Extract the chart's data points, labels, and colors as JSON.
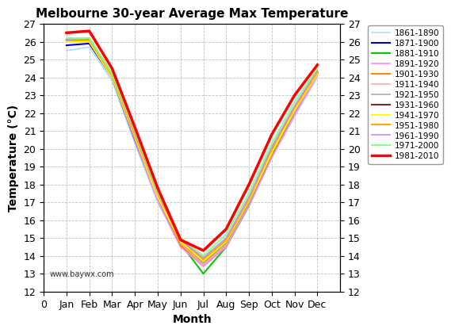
{
  "title": "Melbourne 30-year Average Max Temperature",
  "xlabel": "Month",
  "ylabel": "Temperature (°C)",
  "watermark": "www.baywx.com",
  "ylim": [
    12,
    27
  ],
  "yticks": [
    12,
    13,
    14,
    15,
    16,
    17,
    18,
    19,
    20,
    21,
    22,
    23,
    24,
    25,
    26,
    27
  ],
  "xtick_labels": [
    "0",
    "Jan",
    "Feb",
    "Mar",
    "Apr",
    "May",
    "Jun",
    "Jul",
    "Aug",
    "Sep",
    "Oct",
    "Nov",
    "Dec"
  ],
  "xtick_positions": [
    0,
    1,
    2,
    3,
    4,
    5,
    6,
    7,
    8,
    9,
    10,
    11,
    12
  ],
  "xlim": [
    0,
    13
  ],
  "series": [
    {
      "label": "1861-1890",
      "color": "#aaddff",
      "linewidth": 1.2,
      "zorder": 1,
      "data": [
        25.5,
        25.7,
        23.8,
        20.3,
        17.0,
        14.5,
        13.7,
        14.5,
        16.8,
        19.5,
        21.8,
        24.0
      ]
    },
    {
      "label": "1871-1900",
      "color": "#0000cc",
      "linewidth": 1.5,
      "zorder": 2,
      "data": [
        25.8,
        25.9,
        24.0,
        20.5,
        17.2,
        14.6,
        13.8,
        14.8,
        17.0,
        19.7,
        22.0,
        24.2
      ]
    },
    {
      "label": "1881-1910",
      "color": "#00cc00",
      "linewidth": 1.5,
      "zorder": 3,
      "data": [
        26.1,
        26.2,
        24.2,
        20.6,
        17.3,
        14.7,
        13.0,
        14.5,
        16.8,
        19.6,
        22.0,
        24.3
      ]
    },
    {
      "label": "1891-1920",
      "color": "#ff88ff",
      "linewidth": 1.2,
      "zorder": 4,
      "data": [
        26.0,
        26.0,
        24.0,
        20.5,
        17.1,
        14.5,
        13.4,
        14.5,
        16.8,
        19.5,
        21.9,
        24.1
      ]
    },
    {
      "label": "1901-1930",
      "color": "#ff8800",
      "linewidth": 1.5,
      "zorder": 5,
      "data": [
        26.1,
        26.1,
        24.1,
        20.6,
        17.3,
        14.6,
        13.5,
        14.6,
        17.0,
        19.7,
        22.1,
        24.2
      ]
    },
    {
      "label": "1911-1940",
      "color": "#ffaaaa",
      "linewidth": 1.2,
      "zorder": 6,
      "data": [
        26.0,
        26.0,
        24.0,
        20.6,
        17.3,
        14.7,
        13.5,
        14.6,
        17.0,
        19.8,
        22.1,
        24.2
      ]
    },
    {
      "label": "1921-1950",
      "color": "#aaaaaa",
      "linewidth": 1.2,
      "zorder": 7,
      "data": [
        26.1,
        26.1,
        24.1,
        20.7,
        17.4,
        14.8,
        13.6,
        14.7,
        17.0,
        19.8,
        22.2,
        24.3
      ]
    },
    {
      "label": "1931-1960",
      "color": "#882222",
      "linewidth": 1.5,
      "zorder": 8,
      "data": [
        26.1,
        26.1,
        24.1,
        20.7,
        17.4,
        14.8,
        13.7,
        14.8,
        17.1,
        19.9,
        22.3,
        24.3
      ]
    },
    {
      "label": "1941-1970",
      "color": "#ffff00",
      "linewidth": 1.5,
      "zorder": 9,
      "data": [
        26.0,
        26.0,
        24.0,
        20.7,
        17.3,
        14.8,
        13.7,
        14.8,
        17.1,
        19.8,
        22.2,
        24.2
      ]
    },
    {
      "label": "1951-1980",
      "color": "#ffaa00",
      "linewidth": 1.5,
      "zorder": 10,
      "data": [
        26.1,
        26.1,
        24.1,
        20.8,
        17.5,
        14.9,
        13.8,
        14.9,
        17.2,
        20.0,
        22.3,
        24.3
      ]
    },
    {
      "label": "1961-1990",
      "color": "#cc88ff",
      "linewidth": 1.2,
      "zorder": 11,
      "data": [
        26.1,
        26.2,
        24.2,
        20.9,
        17.5,
        14.9,
        13.9,
        15.0,
        17.3,
        20.1,
        22.4,
        24.4
      ]
    },
    {
      "label": "1971-2000",
      "color": "#88ff88",
      "linewidth": 1.5,
      "zorder": 12,
      "data": [
        26.2,
        26.2,
        24.2,
        21.0,
        17.6,
        15.0,
        14.0,
        15.2,
        17.5,
        20.3,
        22.6,
        24.5
      ]
    },
    {
      "label": "1981-2010",
      "color": "#ff0000",
      "linewidth": 2.5,
      "zorder": 13,
      "data": [
        26.5,
        26.6,
        24.5,
        21.2,
        17.8,
        14.9,
        14.3,
        15.5,
        18.0,
        20.8,
        23.0,
        24.7
      ]
    }
  ],
  "bg_color": "#ffffff",
  "plot_bg_color": "#ffffff",
  "legend_fontsize": 7.5,
  "title_fontsize": 11,
  "axis_label_fontsize": 10,
  "tick_fontsize": 9
}
